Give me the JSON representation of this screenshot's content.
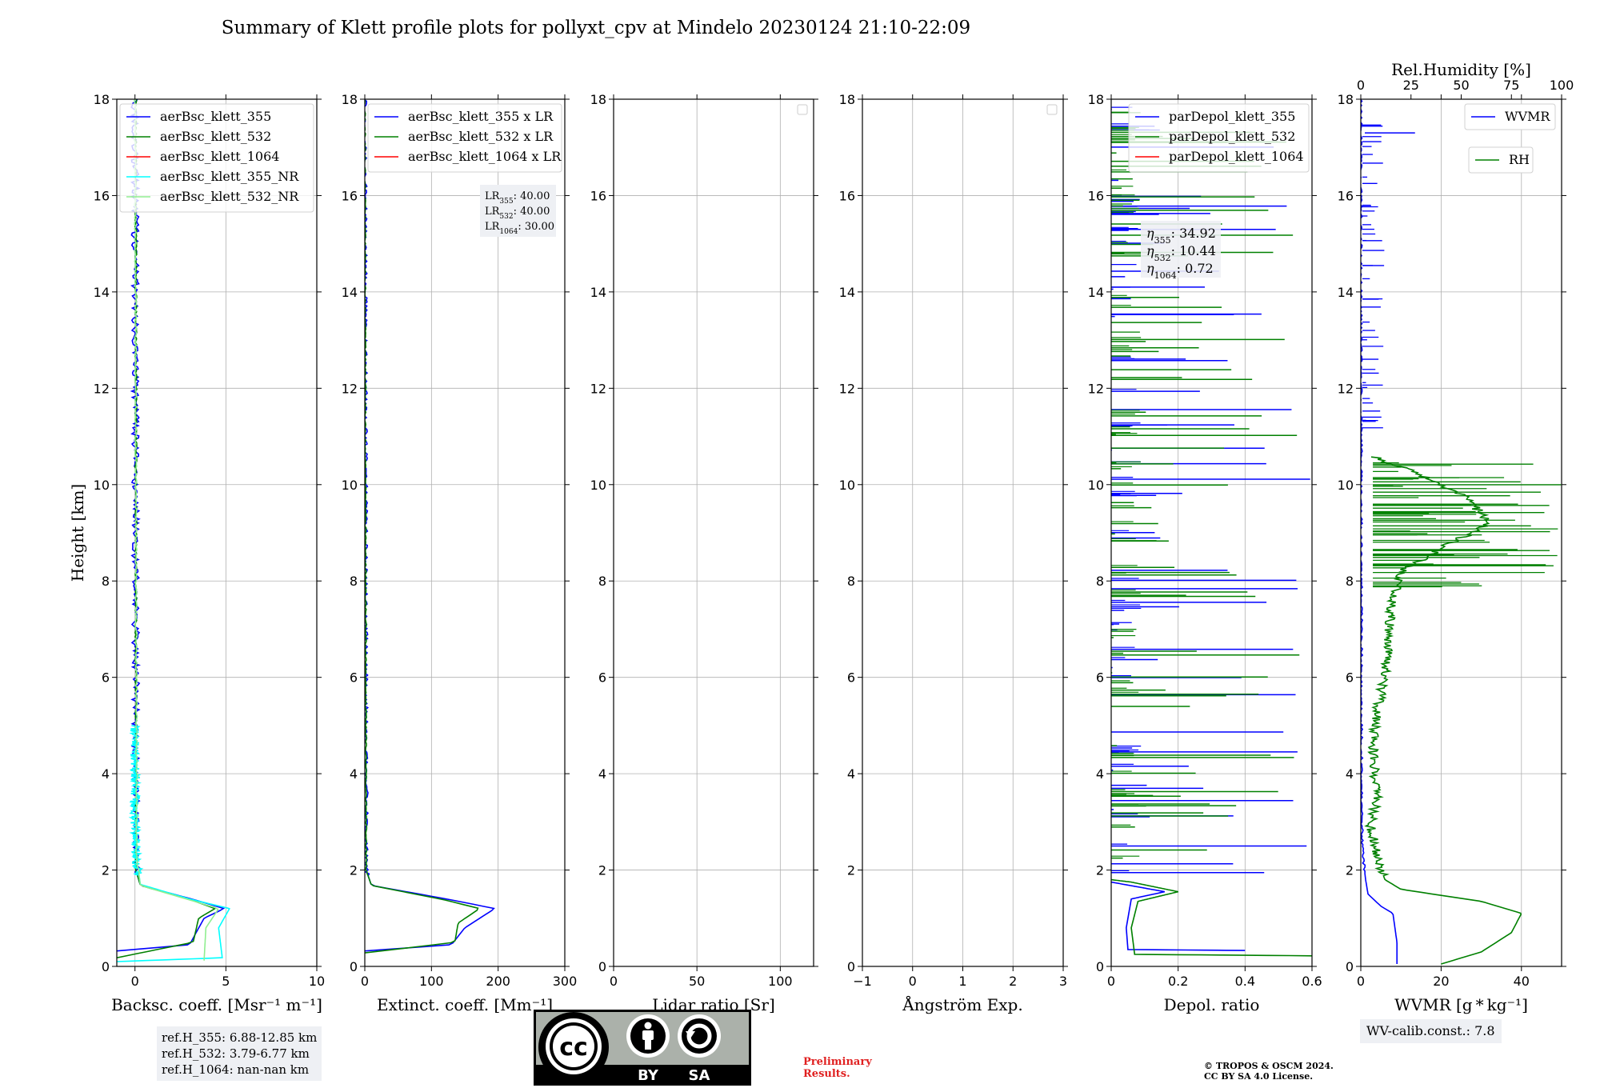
{
  "title": "Summary of Klett profile plots for pollyxt_cpv at Mindelo 20230124 21:10-22:09",
  "colors": {
    "blue": "#0000ff",
    "green": "#008000",
    "red": "#ff0000",
    "cyan": "#00ffff",
    "lightgreen": "#90ee90"
  },
  "chart_data": [
    {
      "type": "line",
      "id": "backscatter",
      "xlabel": "Backsc. coeff. [Msr⁻¹ m⁻¹]",
      "ylabel": "Height [km]",
      "xlim": [
        -1,
        10
      ],
      "ylim": [
        0,
        18
      ],
      "xticks": [
        0,
        5,
        10
      ],
      "yticks": [
        0,
        2,
        4,
        6,
        8,
        10,
        12,
        14,
        16,
        18
      ],
      "legend": {
        "position": "top-right",
        "entries": [
          "aerBsc_klett_355",
          "aerBsc_klett_532",
          "aerBsc_klett_1064",
          "aerBsc_klett_355_NR",
          "aerBsc_klett_532_NR"
        ]
      },
      "series": [
        {
          "name": "aerBsc_klett_355",
          "color": "#0000ff",
          "noise": 0.2,
          "points": [
            [
              -1.0,
              0.32
            ],
            [
              3.0,
              0.45
            ],
            [
              3.8,
              1.0
            ],
            [
              4.9,
              1.2
            ],
            [
              3.3,
              1.38
            ],
            [
              0.3,
              1.68
            ],
            [
              0.05,
              2.0
            ],
            [
              0.0,
              18.0
            ]
          ]
        },
        {
          "name": "aerBsc_klett_532",
          "color": "#008000",
          "noise": 0.05,
          "points": [
            [
              -1.0,
              0.18
            ],
            [
              3.2,
              0.5
            ],
            [
              3.5,
              1.0
            ],
            [
              4.4,
              1.2
            ],
            [
              3.1,
              1.38
            ],
            [
              0.3,
              1.68
            ],
            [
              0.05,
              2.0
            ],
            [
              0.05,
              18.0
            ]
          ]
        },
        {
          "name": "aerBsc_klett_355_NR",
          "color": "#00ffff",
          "noise": 0.25,
          "points": [
            [
              -1.0,
              0.1
            ],
            [
              4.8,
              0.18
            ],
            [
              4.6,
              0.8
            ],
            [
              5.2,
              1.2
            ],
            [
              3.0,
              1.4
            ],
            [
              0.3,
              1.7
            ],
            [
              0.1,
              2.2
            ],
            [
              0.0,
              3.0
            ],
            [
              0.0,
              5.0
            ]
          ]
        },
        {
          "name": "aerBsc_klett_532_NR",
          "color": "#90ee90",
          "noise": 0.05,
          "points": [
            [
              3.8,
              0.12
            ],
            [
              3.9,
              0.8
            ],
            [
              4.6,
              1.2
            ],
            [
              3.0,
              1.38
            ],
            [
              0.3,
              1.68
            ],
            [
              0.1,
              2.2
            ],
            [
              0.0,
              18.0
            ]
          ]
        }
      ]
    },
    {
      "type": "line",
      "id": "extinction",
      "xlabel": "Extinct. coeff. [Mm⁻¹]",
      "xlim": [
        0,
        300
      ],
      "ylim": [
        0,
        18
      ],
      "xticks": [
        0,
        100,
        200,
        300
      ],
      "yticks": [
        0,
        2,
        4,
        6,
        8,
        10,
        12,
        14,
        16,
        18
      ],
      "legend": {
        "position": "top-right",
        "entries": [
          "aerBsc_klett_355 x LR",
          "aerBsc_klett_532 x LR",
          "aerBsc_klett_1064 x LR"
        ]
      },
      "annotation_lines": [
        "40.00",
        "40.00",
        "30.00"
      ],
      "series": [
        {
          "name": "aerBsc_klett_355 x LR",
          "color": "#0000ff",
          "noise": 3,
          "points": [
            [
              0,
              0.32
            ],
            [
              130,
              0.45
            ],
            [
              150,
              0.8
            ],
            [
              195,
              1.2
            ],
            [
              130,
              1.38
            ],
            [
              10,
              1.68
            ],
            [
              2,
              2.0
            ],
            [
              0,
              18.0
            ]
          ]
        },
        {
          "name": "aerBsc_klett_532 x LR",
          "color": "#008000",
          "noise": 1,
          "points": [
            [
              0,
              0.28
            ],
            [
              135,
              0.5
            ],
            [
              140,
              0.9
            ],
            [
              172,
              1.2
            ],
            [
              120,
              1.38
            ],
            [
              10,
              1.68
            ],
            [
              2,
              2.0
            ],
            [
              0,
              18.0
            ]
          ]
        }
      ]
    },
    {
      "type": "line",
      "id": "lidar-ratio",
      "xlabel": "Lidar ratio [Sr]",
      "xlim": [
        0,
        120
      ],
      "ylim": [
        0,
        18
      ],
      "xticks": [
        0,
        50,
        100
      ],
      "yticks": [
        0,
        2,
        4,
        6,
        8,
        10,
        12,
        14,
        16,
        18
      ],
      "series": []
    },
    {
      "type": "line",
      "id": "angstrom",
      "xlabel": "Ångström Exp.",
      "xlim": [
        -1,
        3
      ],
      "ylim": [
        0,
        18
      ],
      "xticks": [
        -1,
        0,
        1,
        2,
        3
      ],
      "yticks": [
        0,
        2,
        4,
        6,
        8,
        10,
        12,
        14,
        16,
        18
      ],
      "series": []
    },
    {
      "type": "line",
      "id": "depol",
      "xlabel": "Depol. ratio",
      "xlim": [
        0,
        0.6
      ],
      "ylim": [
        0,
        18
      ],
      "xticks": [
        0.0,
        0.2,
        0.4,
        0.6
      ],
      "yticks": [
        0,
        2,
        4,
        6,
        8,
        10,
        12,
        14,
        16,
        18
      ],
      "legend": {
        "position": "top-right",
        "entries": [
          "parDepol_klett_355",
          "parDepol_klett_532",
          "parDepol_klett_1064"
        ]
      },
      "annotation_lines": [
        "34.92",
        "10.44",
        "0.72"
      ],
      "series": [
        {
          "name": "parDepol_klett_355",
          "color": "#0000ff",
          "noise": 0.004,
          "points": [
            [
              0.4,
              0.33
            ],
            [
              0.05,
              0.35
            ],
            [
              0.045,
              0.8
            ],
            [
              0.06,
              1.4
            ],
            [
              0.16,
              1.55
            ],
            [
              0.04,
              1.7
            ],
            [
              0.0,
              1.75
            ]
          ]
        },
        {
          "name": "parDepol_klett_532",
          "color": "#008000",
          "noise": 0.004,
          "points": [
            [
              0.6,
              0.22
            ],
            [
              0.07,
              0.25
            ],
            [
              0.06,
              0.8
            ],
            [
              0.08,
              1.35
            ],
            [
              0.2,
              1.55
            ],
            [
              0.06,
              1.75
            ],
            [
              0.0,
              1.8
            ]
          ]
        }
      ],
      "spikes": [
        {
          "name": "parDepol_klett_355",
          "color": "#0000ff",
          "ymin": 1.9,
          "ymax": 17.8,
          "count": 75,
          "maxval": 0.6
        },
        {
          "name": "parDepol_klett_532",
          "color": "#008000",
          "ymin": 1.9,
          "ymax": 17.8,
          "count": 95,
          "maxval": 0.6
        }
      ]
    },
    {
      "type": "line",
      "id": "wvmr-rh",
      "xlabel": "WVMR [g * kg⁻¹]",
      "xlim": [
        0,
        50
      ],
      "ylim": [
        0,
        18
      ],
      "xticks": [
        0,
        20,
        40
      ],
      "yticks": [
        0,
        2,
        4,
        6,
        8,
        10,
        12,
        14,
        16,
        18
      ],
      "top_axis": {
        "label": "Rel.Humidity [%]",
        "lim": [
          0,
          100
        ],
        "ticks": [
          0,
          25,
          50,
          75,
          100
        ]
      },
      "legend": {
        "position": "top-right",
        "entries": [
          "WVMR",
          "RH"
        ]
      },
      "series": [
        {
          "name": "WVMR",
          "color": "#0000ff",
          "axis": "bottom",
          "noise": 0.3,
          "points": [
            [
              9,
              0.05
            ],
            [
              9,
              0.5
            ],
            [
              8,
              1.1
            ],
            [
              5,
              1.25
            ],
            [
              1.8,
              1.5
            ],
            [
              1.2,
              1.8
            ],
            [
              0.6,
              2.2
            ],
            [
              0.2,
              3.0
            ],
            [
              0.15,
              5.0
            ],
            [
              0.1,
              8.0
            ],
            [
              0.05,
              12.0
            ],
            [
              0.0,
              18.0
            ]
          ]
        },
        {
          "name": "RH",
          "color": "#008000",
          "axis": "top",
          "noise": 2.5,
          "points": [
            [
              40,
              0.05
            ],
            [
              60,
              0.3
            ],
            [
              75,
              0.7
            ],
            [
              80,
              1.1
            ],
            [
              60,
              1.35
            ],
            [
              20,
              1.6
            ],
            [
              12,
              1.8
            ],
            [
              8,
              2.3
            ],
            [
              5,
              2.9
            ],
            [
              8,
              3.5
            ],
            [
              6,
              4.5
            ],
            [
              8,
              5.3
            ],
            [
              12,
              6.0
            ],
            [
              14,
              6.8
            ],
            [
              15,
              7.5
            ],
            [
              20,
              8.2
            ],
            [
              45,
              8.8
            ],
            [
              65,
              9.2
            ],
            [
              50,
              9.8
            ],
            [
              30,
              10.2
            ],
            [
              5,
              10.6
            ]
          ]
        }
      ],
      "noisy_bands": [
        {
          "name": "WVMR",
          "color": "#0000ff",
          "axis": "bottom",
          "ymin": 11.0,
          "ymax": 17.5,
          "base": 1.0,
          "maxval": 6.0,
          "count": 45,
          "extra": [
            [
              14.5,
              17.3
            ]
          ]
        },
        {
          "name": "RH",
          "color": "#008000",
          "axis": "top",
          "ymin": 7.8,
          "ymax": 10.5,
          "base": 15,
          "maxval": 100,
          "count": 60
        }
      ]
    }
  ],
  "refh": {
    "line1": "ref.H_355: 6.88-12.85 km",
    "line2": "ref.H_532: 3.79-6.77 km",
    "line3": "ref.H_1064: nan-nan km"
  },
  "wvcalib": "WV-calib.const.: 7.8",
  "prelim": {
    "line1": "Preliminary",
    "line2": "Results."
  },
  "copyright": {
    "line1": "© TROPOS & OSCM 2024.",
    "line2": "CC BY SA 4.0 License."
  },
  "license_badge": {
    "main": "cc",
    "by": "BY",
    "sa": "SA"
  }
}
